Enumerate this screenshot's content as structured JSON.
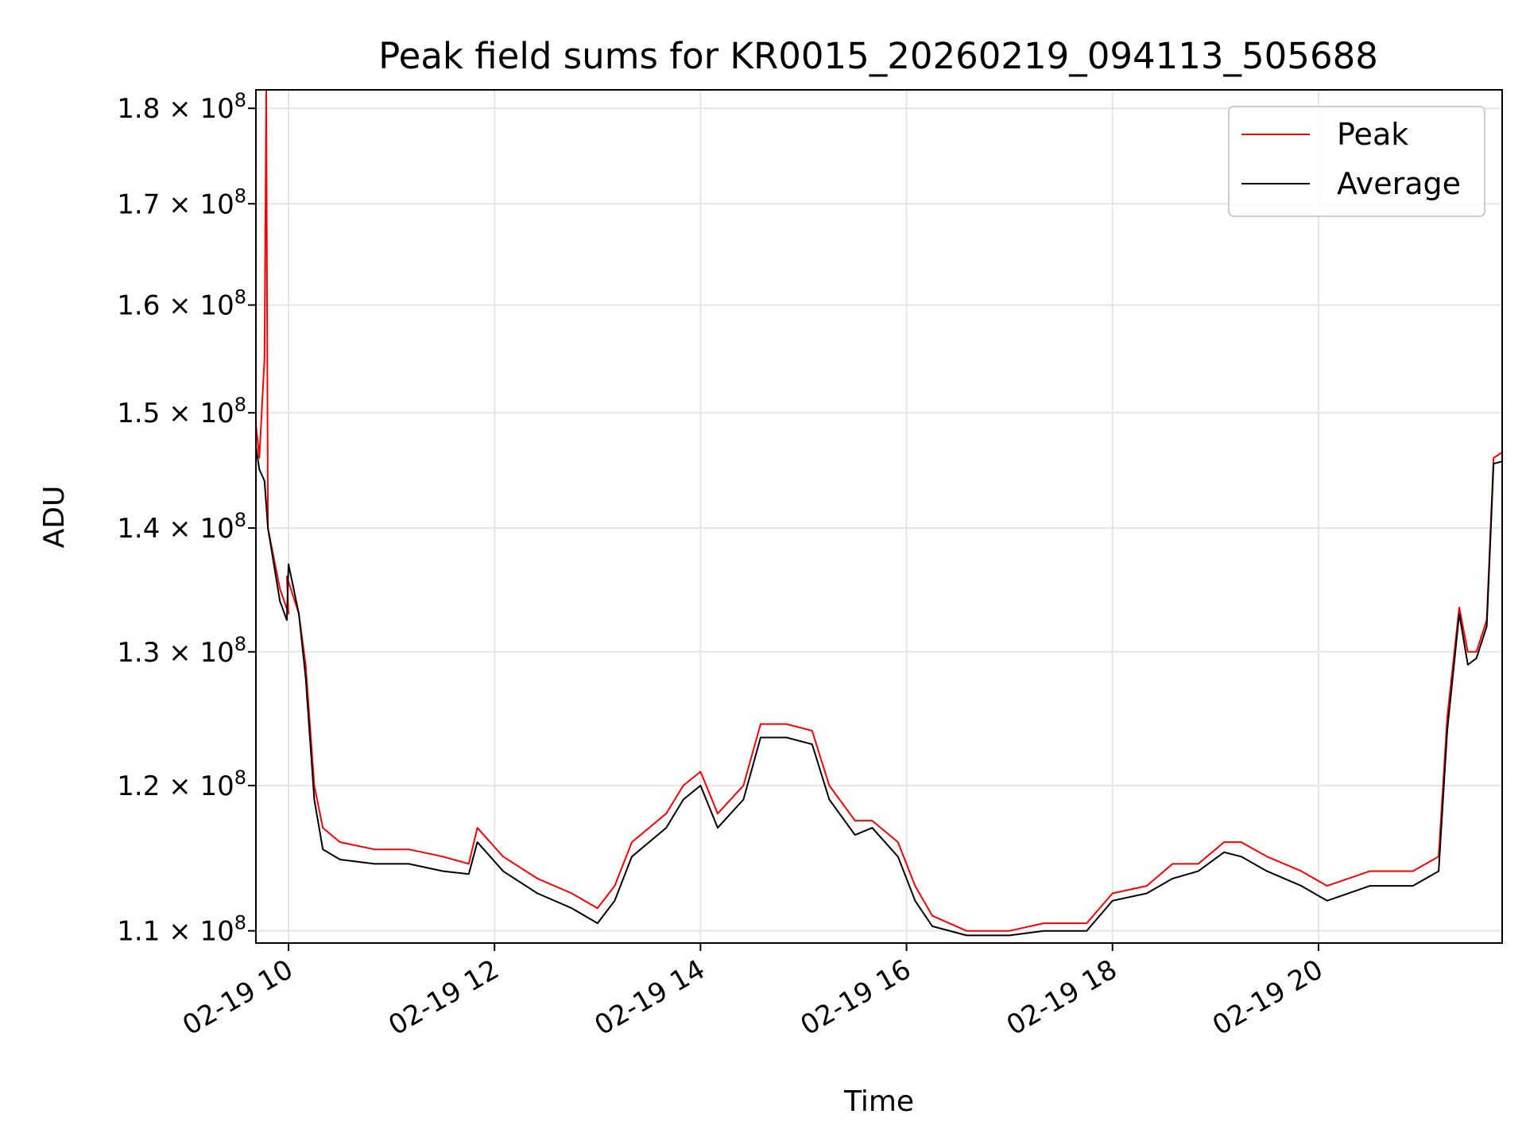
{
  "chart_data": {
    "type": "line",
    "title": "Peak field sums for KR0015_20260219_094113_505688",
    "xlabel": "Time",
    "ylabel": "ADU",
    "x_axis_type": "datetime",
    "y_scale": "log",
    "ylim": [
      109200000,
      182000000
    ],
    "xlim": [
      "2026-02-19 09:41",
      "2026-02-19 21:47"
    ],
    "grid": true,
    "legend_position": "top-right",
    "x_ticks": [
      {
        "t": "2026-02-19 10:00",
        "label": "02-19 10"
      },
      {
        "t": "2026-02-19 12:00",
        "label": "02-19 12"
      },
      {
        "t": "2026-02-19 14:00",
        "label": "02-19 14"
      },
      {
        "t": "2026-02-19 16:00",
        "label": "02-19 16"
      },
      {
        "t": "2026-02-19 18:00",
        "label": "02-19 18"
      },
      {
        "t": "2026-02-19 20:00",
        "label": "02-19 20"
      }
    ],
    "y_ticks": [
      {
        "value": 110000000,
        "mant": "1.1"
      },
      {
        "value": 120000000,
        "mant": "1.2"
      },
      {
        "value": 130000000,
        "mant": "1.3"
      },
      {
        "value": 140000000,
        "mant": "1.4"
      },
      {
        "value": 150000000,
        "mant": "1.5"
      },
      {
        "value": 160000000,
        "mant": "1.6"
      },
      {
        "value": 170000000,
        "mant": "1.7"
      },
      {
        "value": 180000000,
        "mant": "1.8"
      }
    ],
    "y_tick_suffix": "× 10",
    "y_tick_exponent": "8",
    "series": [
      {
        "name": "Peak",
        "color": "#ff0000",
        "points": [
          [
            "2026-02-19 09:41",
            149000000.0
          ],
          [
            "2026-02-19 09:43",
            146000000.0
          ],
          [
            "2026-02-19 09:46",
            155000000.0
          ],
          [
            "2026-02-19 09:47",
            182000000.0
          ],
          [
            "2026-02-19 09:48",
            140000000.0
          ],
          [
            "2026-02-19 09:55",
            135000000.0
          ],
          [
            "2026-02-19 10:00",
            133000000.0
          ],
          [
            "2026-02-19 09:59",
            136000000.0
          ],
          [
            "2026-02-19 10:06",
            133000000.0
          ],
          [
            "2026-02-19 10:10",
            129000000.0
          ],
          [
            "2026-02-19 10:15",
            120000000.0
          ],
          [
            "2026-02-19 10:20",
            117000000.0
          ],
          [
            "2026-02-19 10:30",
            116000000.0
          ],
          [
            "2026-02-19 10:50",
            115500000.0
          ],
          [
            "2026-02-19 11:10",
            115500000.0
          ],
          [
            "2026-02-19 11:30",
            115000000.0
          ],
          [
            "2026-02-19 11:45",
            114500000.0
          ],
          [
            "2026-02-19 11:50",
            117000000.0
          ],
          [
            "2026-02-19 12:05",
            115000000.0
          ],
          [
            "2026-02-19 12:25",
            113500000.0
          ],
          [
            "2026-02-19 12:45",
            112500000.0
          ],
          [
            "2026-02-19 13:00",
            111500000.0
          ],
          [
            "2026-02-19 13:10",
            113000000.0
          ],
          [
            "2026-02-19 13:20",
            116000000.0
          ],
          [
            "2026-02-19 13:40",
            118000000.0
          ],
          [
            "2026-02-19 13:50",
            120000000.0
          ],
          [
            "2026-02-19 14:00",
            121000000.0
          ],
          [
            "2026-02-19 14:10",
            118000000.0
          ],
          [
            "2026-02-19 14:25",
            120000000.0
          ],
          [
            "2026-02-19 14:35",
            124500000.0
          ],
          [
            "2026-02-19 14:50",
            124500000.0
          ],
          [
            "2026-02-19 15:05",
            124000000.0
          ],
          [
            "2026-02-19 15:15",
            120000000.0
          ],
          [
            "2026-02-19 15:30",
            117500000.0
          ],
          [
            "2026-02-19 15:40",
            117500000.0
          ],
          [
            "2026-02-19 15:55",
            116000000.0
          ],
          [
            "2026-02-19 16:05",
            113000000.0
          ],
          [
            "2026-02-19 16:15",
            111000000.0
          ],
          [
            "2026-02-19 16:35",
            110000000.0
          ],
          [
            "2026-02-19 17:00",
            110000000.0
          ],
          [
            "2026-02-19 17:20",
            110500000.0
          ],
          [
            "2026-02-19 17:45",
            110500000.0
          ],
          [
            "2026-02-19 18:00",
            112500000.0
          ],
          [
            "2026-02-19 18:20",
            113000000.0
          ],
          [
            "2026-02-19 18:35",
            114500000.0
          ],
          [
            "2026-02-19 18:50",
            114500000.0
          ],
          [
            "2026-02-19 19:05",
            116000000.0
          ],
          [
            "2026-02-19 19:15",
            116000000.0
          ],
          [
            "2026-02-19 19:30",
            115000000.0
          ],
          [
            "2026-02-19 19:50",
            114000000.0
          ],
          [
            "2026-02-19 20:05",
            113000000.0
          ],
          [
            "2026-02-19 20:30",
            114000000.0
          ],
          [
            "2026-02-19 20:55",
            114000000.0
          ],
          [
            "2026-02-19 21:10",
            115000000.0
          ],
          [
            "2026-02-19 21:15",
            125000000.0
          ],
          [
            "2026-02-19 21:22",
            133500000.0
          ],
          [
            "2026-02-19 21:27",
            130000000.0
          ],
          [
            "2026-02-19 21:32",
            130000000.0
          ],
          [
            "2026-02-19 21:38",
            132500000.0
          ],
          [
            "2026-02-19 21:42",
            146000000.0
          ],
          [
            "2026-02-19 21:47",
            146500000.0
          ]
        ]
      },
      {
        "name": "Average",
        "color": "#000000",
        "points": [
          [
            "2026-02-19 09:41",
            147000000.0
          ],
          [
            "2026-02-19 09:43",
            145000000.0
          ],
          [
            "2026-02-19 09:46",
            144000000.0
          ],
          [
            "2026-02-19 09:48",
            140000000.0
          ],
          [
            "2026-02-19 09:55",
            134000000.0
          ],
          [
            "2026-02-19 09:59",
            132500000.0
          ],
          [
            "2026-02-19 10:00",
            137000000.0
          ],
          [
            "2026-02-19 10:06",
            133000000.0
          ],
          [
            "2026-02-19 10:10",
            128000000.0
          ],
          [
            "2026-02-19 10:15",
            119000000.0
          ],
          [
            "2026-02-19 10:20",
            115500000.0
          ],
          [
            "2026-02-19 10:30",
            114800000.0
          ],
          [
            "2026-02-19 10:50",
            114500000.0
          ],
          [
            "2026-02-19 11:10",
            114500000.0
          ],
          [
            "2026-02-19 11:30",
            114000000.0
          ],
          [
            "2026-02-19 11:45",
            113800000.0
          ],
          [
            "2026-02-19 11:50",
            116000000.0
          ],
          [
            "2026-02-19 12:05",
            114000000.0
          ],
          [
            "2026-02-19 12:25",
            112500000.0
          ],
          [
            "2026-02-19 12:45",
            111500000.0
          ],
          [
            "2026-02-19 13:00",
            110500000.0
          ],
          [
            "2026-02-19 13:10",
            112000000.0
          ],
          [
            "2026-02-19 13:20",
            115000000.0
          ],
          [
            "2026-02-19 13:40",
            117000000.0
          ],
          [
            "2026-02-19 13:50",
            119000000.0
          ],
          [
            "2026-02-19 14:00",
            120000000.0
          ],
          [
            "2026-02-19 14:10",
            117000000.0
          ],
          [
            "2026-02-19 14:25",
            119000000.0
          ],
          [
            "2026-02-19 14:35",
            123500000.0
          ],
          [
            "2026-02-19 14:50",
            123500000.0
          ],
          [
            "2026-02-19 15:05",
            123000000.0
          ],
          [
            "2026-02-19 15:15",
            119000000.0
          ],
          [
            "2026-02-19 15:30",
            116500000.0
          ],
          [
            "2026-02-19 15:40",
            117000000.0
          ],
          [
            "2026-02-19 15:55",
            115000000.0
          ],
          [
            "2026-02-19 16:05",
            112000000.0
          ],
          [
            "2026-02-19 16:15",
            110300000.0
          ],
          [
            "2026-02-19 16:35",
            109700000.0
          ],
          [
            "2026-02-19 17:00",
            109700000.0
          ],
          [
            "2026-02-19 17:20",
            110000000.0
          ],
          [
            "2026-02-19 17:45",
            110000000.0
          ],
          [
            "2026-02-19 18:00",
            112000000.0
          ],
          [
            "2026-02-19 18:20",
            112500000.0
          ],
          [
            "2026-02-19 18:35",
            113500000.0
          ],
          [
            "2026-02-19 18:50",
            114000000.0
          ],
          [
            "2026-02-19 19:05",
            115300000.0
          ],
          [
            "2026-02-19 19:15",
            115000000.0
          ],
          [
            "2026-02-19 19:30",
            114000000.0
          ],
          [
            "2026-02-19 19:50",
            113000000.0
          ],
          [
            "2026-02-19 20:05",
            112000000.0
          ],
          [
            "2026-02-19 20:30",
            113000000.0
          ],
          [
            "2026-02-19 20:55",
            113000000.0
          ],
          [
            "2026-02-19 21:10",
            114000000.0
          ],
          [
            "2026-02-19 21:15",
            124000000.0
          ],
          [
            "2026-02-19 21:22",
            133000000.0
          ],
          [
            "2026-02-19 21:27",
            129000000.0
          ],
          [
            "2026-02-19 21:32",
            129500000.0
          ],
          [
            "2026-02-19 21:38",
            132000000.0
          ],
          [
            "2026-02-19 21:42",
            145500000.0
          ],
          [
            "2026-02-19 21:47",
            145700000.0
          ]
        ]
      }
    ]
  }
}
